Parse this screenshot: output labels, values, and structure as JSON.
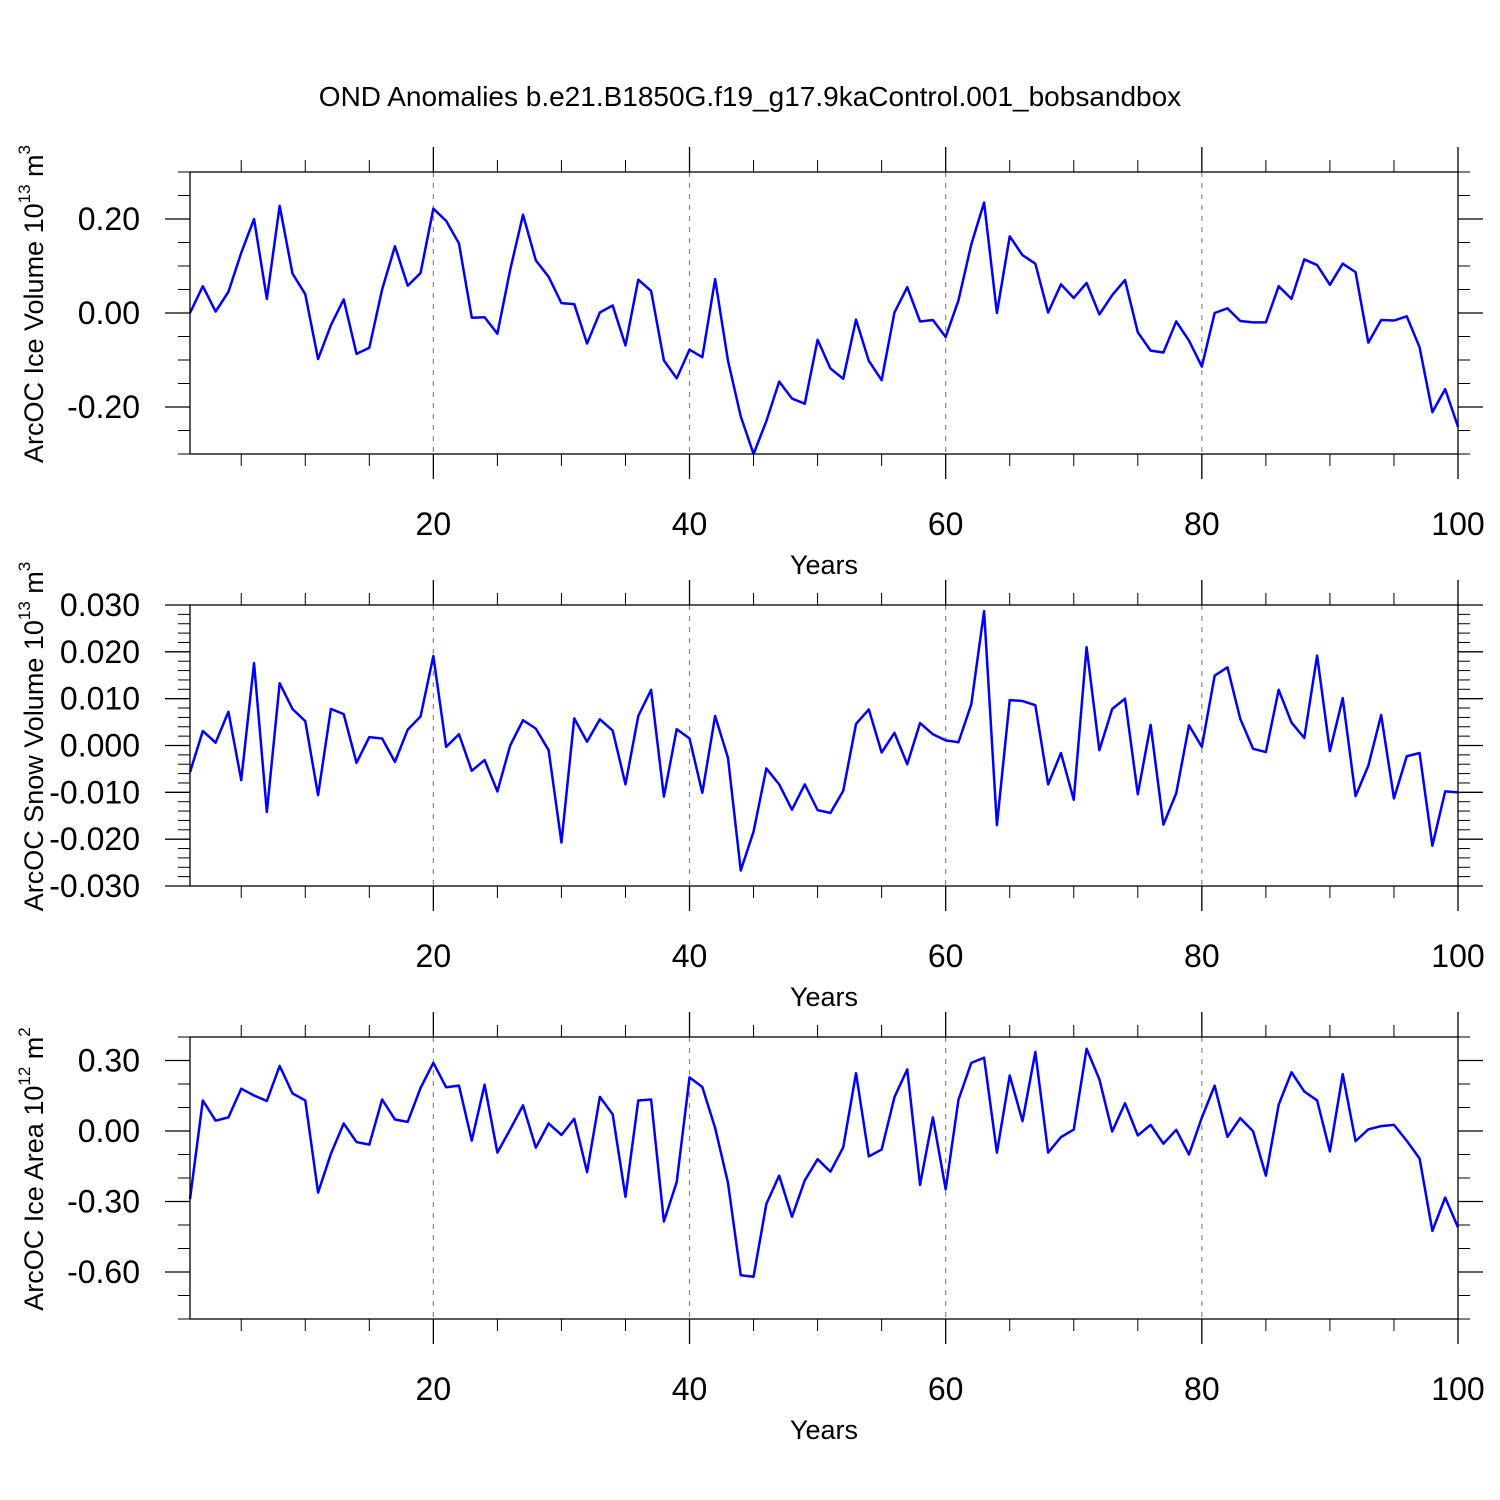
{
  "title": "OND Anomalies b.e21.B1850G.f19_g17.9kaControl.001_bobsandbox",
  "colors": {
    "line": "#0000ff",
    "axes": "#000000",
    "grid": "#888888"
  },
  "chart_data": [
    {
      "type": "line",
      "xlabel": "Years",
      "ylabel": {
        "text": "ArcOC Ice Volume 10",
        "exponent": "13",
        "unit": " m",
        "unit_exponent": "3"
      },
      "xlim": [
        1,
        100
      ],
      "ylim": [
        -0.3,
        0.3
      ],
      "xticks": [
        20,
        40,
        60,
        80,
        100
      ],
      "xtick_labels": [
        "20",
        "40",
        "60",
        "80",
        "100"
      ],
      "yticks": [
        -0.2,
        0.0,
        0.2
      ],
      "ytick_labels": [
        "-0.20",
        "0.00",
        "0.20"
      ],
      "ytick_minor_step": 0.05,
      "grid": "dashed vertical at major x ticks",
      "series": [
        {
          "name": "Ice Volume",
          "x_start": 1,
          "values": [
            0.0,
            0.057,
            0.003,
            0.045,
            0.128,
            0.2,
            0.03,
            0.228,
            0.084,
            0.04,
            -0.098,
            -0.026,
            0.029,
            -0.087,
            -0.074,
            0.05,
            0.142,
            0.058,
            0.085,
            0.222,
            0.196,
            0.148,
            -0.01,
            -0.009,
            -0.044,
            0.092,
            0.209,
            0.112,
            0.077,
            0.021,
            0.019,
            -0.065,
            0.001,
            0.016,
            -0.069,
            0.071,
            0.047,
            -0.101,
            -0.139,
            -0.078,
            -0.094,
            0.072,
            -0.101,
            -0.22,
            -0.3,
            -0.23,
            -0.146,
            -0.182,
            -0.193,
            -0.057,
            -0.118,
            -0.14,
            -0.014,
            -0.102,
            -0.143,
            0.001,
            0.055,
            -0.018,
            -0.015,
            -0.051,
            0.027,
            0.146,
            0.235,
            0.0,
            0.163,
            0.123,
            0.105,
            0.001,
            0.061,
            0.032,
            0.064,
            -0.003,
            0.038,
            0.07,
            -0.041,
            -0.08,
            -0.084,
            -0.018,
            -0.059,
            -0.114,
            0.0,
            0.01,
            -0.017,
            -0.02,
            -0.02,
            0.057,
            0.03,
            0.114,
            0.102,
            0.06,
            0.105,
            0.087,
            -0.063,
            -0.015,
            -0.016,
            -0.007,
            -0.073,
            -0.211,
            -0.162,
            -0.242
          ]
        }
      ]
    },
    {
      "type": "line",
      "xlabel": "Years",
      "ylabel": {
        "text": "ArcOC Snow Volume 10",
        "exponent": "13",
        "unit": " m",
        "unit_exponent": "3"
      },
      "xlim": [
        1,
        100
      ],
      "ylim": [
        -0.03,
        0.03
      ],
      "xticks": [
        20,
        40,
        60,
        80,
        100
      ],
      "xtick_labels": [
        "20",
        "40",
        "60",
        "80",
        "100"
      ],
      "yticks": [
        -0.03,
        -0.02,
        -0.01,
        0.0,
        0.01,
        0.02,
        0.03
      ],
      "ytick_labels": [
        "-0.030",
        "-0.020",
        "-0.010",
        "0.000",
        "0.010",
        "0.020",
        "0.030"
      ],
      "ytick_minor_step": 0.002,
      "grid": "dashed vertical at major x ticks",
      "series": [
        {
          "name": "Snow Volume",
          "x_start": 1,
          "values": [
            -0.0057,
            0.0031,
            0.0006,
            0.0072,
            -0.0074,
            0.0176,
            -0.0142,
            0.0133,
            0.0078,
            0.0052,
            -0.0106,
            0.0078,
            0.0067,
            -0.0037,
            0.0018,
            0.0015,
            -0.0035,
            0.0034,
            0.0062,
            0.0191,
            -0.0003,
            0.0024,
            -0.0054,
            -0.0031,
            -0.0098,
            0.0,
            0.0054,
            0.0036,
            -0.001,
            -0.0207,
            0.0058,
            0.0008,
            0.0056,
            0.0032,
            -0.0083,
            0.0063,
            0.0119,
            -0.0109,
            0.0035,
            0.0015,
            -0.0101,
            0.0063,
            -0.0026,
            -0.0267,
            -0.0184,
            -0.0049,
            -0.0083,
            -0.0137,
            -0.0083,
            -0.0138,
            -0.0144,
            -0.0097,
            0.0046,
            0.0077,
            -0.0015,
            0.0027,
            -0.004,
            0.0048,
            0.0024,
            0.0011,
            0.0007,
            0.0088,
            0.0287,
            -0.017,
            0.0097,
            0.0095,
            0.0086,
            -0.0083,
            -0.0016,
            -0.0116,
            0.021,
            -0.001,
            0.0078,
            0.01,
            -0.0104,
            0.0044,
            -0.0169,
            -0.0102,
            0.0043,
            -0.0003,
            0.0149,
            0.0167,
            0.0057,
            -0.0007,
            -0.0014,
            0.0119,
            0.0049,
            0.0016,
            0.0192,
            -0.0012,
            0.0101,
            -0.0108,
            -0.0043,
            0.0065,
            -0.0113,
            -0.0023,
            -0.0016,
            -0.0214,
            -0.0098,
            -0.01
          ]
        }
      ]
    },
    {
      "type": "line",
      "xlabel": "Years",
      "ylabel": {
        "text": "ArcOC Ice Area 10",
        "exponent": "12",
        "unit": " m",
        "unit_exponent": "2"
      },
      "xlim": [
        1,
        100
      ],
      "ylim": [
        -0.8,
        0.4
      ],
      "xticks": [
        20,
        40,
        60,
        80,
        100
      ],
      "xtick_labels": [
        "20",
        "40",
        "60",
        "80",
        "100"
      ],
      "yticks": [
        -0.6,
        -0.3,
        0.0,
        0.3
      ],
      "ytick_labels": [
        "-0.60",
        "-0.30",
        "0.00",
        "0.30"
      ],
      "ytick_minor_step": 0.1,
      "grid": "dashed vertical at major x ticks",
      "series": [
        {
          "name": "Ice Area",
          "x_start": 1,
          "values": [
            -0.29,
            0.13,
            0.044,
            0.058,
            0.18,
            0.151,
            0.128,
            0.277,
            0.16,
            0.13,
            -0.262,
            -0.097,
            0.032,
            -0.047,
            -0.058,
            0.134,
            0.049,
            0.039,
            0.183,
            0.29,
            0.186,
            0.193,
            -0.041,
            0.197,
            -0.092,
            0.007,
            0.109,
            -0.071,
            0.032,
            -0.017,
            0.052,
            -0.175,
            0.145,
            0.071,
            -0.28,
            0.13,
            0.134,
            -0.385,
            -0.217,
            0.228,
            0.187,
            0.013,
            -0.22,
            -0.614,
            -0.62,
            -0.31,
            -0.19,
            -0.365,
            -0.21,
            -0.12,
            -0.173,
            -0.07,
            0.246,
            -0.108,
            -0.079,
            0.144,
            0.262,
            -0.229,
            0.058,
            -0.248,
            0.133,
            0.29,
            0.312,
            -0.092,
            0.236,
            0.042,
            0.336,
            -0.092,
            -0.026,
            0.006,
            0.35,
            0.22,
            -0.002,
            0.118,
            -0.019,
            0.026,
            -0.054,
            0.005,
            -0.1,
            0.057,
            0.193,
            -0.025,
            0.055,
            -0.001,
            -0.19,
            0.112,
            0.25,
            0.168,
            0.13,
            -0.087,
            0.242,
            -0.043,
            0.007,
            0.021,
            0.026,
            -0.042,
            -0.117,
            -0.425,
            -0.283,
            -0.41
          ]
        }
      ]
    }
  ]
}
